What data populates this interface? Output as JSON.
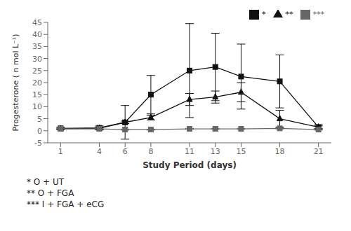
{
  "chart_data": {
    "type": "line",
    "x_label": "Study Period (days)",
    "y_label": "Progesterone ( n mol L⁻¹)",
    "x": [
      1,
      4,
      6,
      8,
      11,
      13,
      15,
      18,
      21
    ],
    "series": [
      {
        "name": "*",
        "color": "#111111",
        "marker": "square",
        "line_style": "solid",
        "values": [
          1.0,
          1.2,
          3.5,
          15.0,
          25.0,
          26.5,
          22.5,
          20.5,
          1.5
        ],
        "yerr": [
          0.5,
          0.8,
          7.0,
          8.0,
          19.5,
          14.0,
          13.5,
          11.0,
          1.0
        ]
      },
      {
        "name": "**",
        "color": "#111111",
        "marker": "triangle",
        "line_style": "solid",
        "values": [
          0.8,
          1.0,
          3.5,
          5.5,
          13.0,
          14.0,
          16.0,
          5.0,
          1.5
        ],
        "yerr": [
          0.3,
          0.5,
          0.5,
          1.0,
          2.5,
          2.5,
          4.0,
          3.5,
          0.5
        ]
      },
      {
        "name": "***",
        "color": "#666666",
        "marker": "square",
        "line_style": "solid",
        "values": [
          0.8,
          0.8,
          0.5,
          0.5,
          0.8,
          0.8,
          0.8,
          1.0,
          0.5
        ],
        "yerr": [
          0.2,
          0.2,
          0.2,
          0.2,
          0.2,
          0.2,
          0.2,
          0.2,
          0.2
        ]
      }
    ],
    "xlim": [
      0,
      22
    ],
    "xticks": [
      1,
      4,
      6,
      8,
      11,
      13,
      15,
      18,
      21
    ],
    "ylim": [
      -5,
      45
    ],
    "yticks": [
      -5,
      0,
      5,
      10,
      15,
      20,
      25,
      30,
      35,
      40,
      45
    ],
    "legend": "upper right",
    "grid": false,
    "annotations": [
      "* O + UT",
      "** O + FGA",
      "*** I + FGA + eCG"
    ]
  }
}
